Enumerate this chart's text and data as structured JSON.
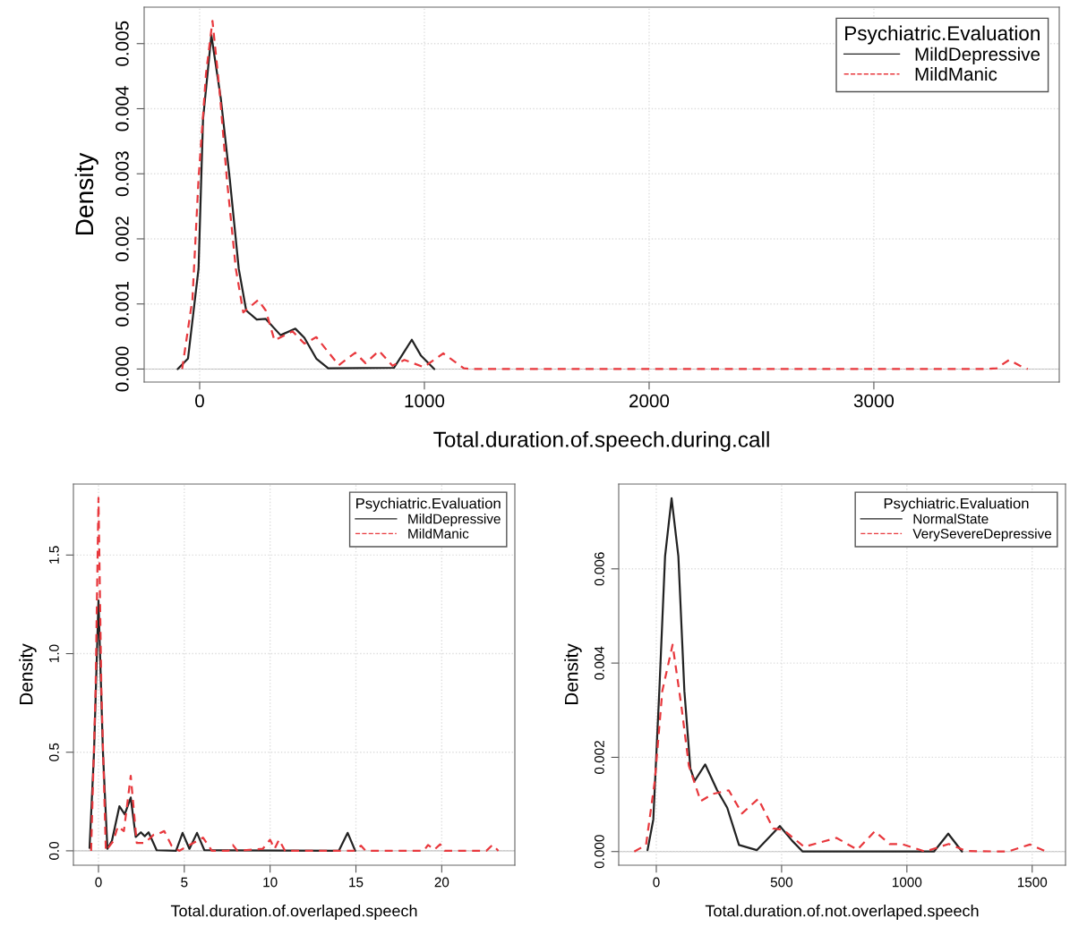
{
  "chart_data": [
    {
      "type": "line",
      "xlabel": "Total.duration.of.speech.during.call",
      "ylabel": "Density",
      "legend_title": "Psychiatric.Evaluation",
      "legend": "top right",
      "grid": true,
      "xlim": [
        -247,
        3825
      ],
      "ylim": [
        -0.0002,
        0.00556
      ],
      "xticks": [
        0,
        1000,
        2000,
        3000
      ],
      "yticks": [
        {
          "value": 0,
          "label": "0.000"
        },
        {
          "value": 0.001,
          "label": "0.001"
        },
        {
          "value": 0.002,
          "label": "0.002"
        },
        {
          "value": 0.003,
          "label": "0.003"
        },
        {
          "value": 0.004,
          "label": "0.004"
        },
        {
          "value": 0.005,
          "label": "0.005"
        }
      ],
      "series": [
        {
          "name": "MildDepressive",
          "color": "#222222",
          "line_style": "solid",
          "x": [
            -98,
            -52,
            -5,
            15,
            52,
            94,
            134,
            174,
            207,
            254,
            294,
            360,
            426,
            466,
            519,
            572,
            865,
            904,
            944,
            984,
            1044
          ],
          "values": [
            0,
            0.00016,
            0.00154,
            0.00384,
            0.00513,
            0.00416,
            0.00292,
            0.00154,
            0.0009,
            0.00076,
            0.00077,
            0.00052,
            0.00062,
            0.00048,
            0.00016,
            1e-05,
            2e-05,
            0.00023,
            0.00045,
            0.00021,
            0
          ]
        },
        {
          "name": "MildManic",
          "color": "#e8383d",
          "line_style": "dashed",
          "x": [
            -78,
            -32,
            -5,
            28,
            57,
            88,
            121,
            161,
            194,
            260,
            294,
            333,
            413,
            466,
            519,
            619,
            692,
            738,
            798,
            858,
            911,
            997,
            1084,
            1176,
            1210,
            3500,
            3546,
            3602,
            3650,
            3685
          ],
          "values": [
            0,
            0.00108,
            0.00292,
            0.00453,
            0.00535,
            0.0043,
            0.00292,
            0.00154,
            0.00087,
            0.00106,
            0.0009,
            0.00044,
            0.00058,
            0.00039,
            0.00049,
            6e-05,
            0.00025,
            9e-05,
            0.00028,
            5e-05,
            0.00014,
            3e-05,
            0.00024,
            1e-05,
            0,
            0,
            1e-05,
            0.00014,
            5e-05,
            0
          ]
        }
      ]
    },
    {
      "type": "line",
      "xlabel": "Total.duration.of.overlaped.speech",
      "ylabel": "Density",
      "legend_title": "Psychiatric.Evaluation",
      "legend": "top right",
      "grid": true,
      "xlim": [
        -1.46,
        24.26
      ],
      "ylim": [
        -0.073,
        1.86
      ],
      "xticks": [
        0,
        5,
        10,
        15,
        20
      ],
      "yticks": [
        {
          "value": 0,
          "label": "0.0"
        },
        {
          "value": 0.5,
          "label": "0.5"
        },
        {
          "value": 1,
          "label": "1.0"
        },
        {
          "value": 1.5,
          "label": "1.5"
        }
      ],
      "series": [
        {
          "name": "MildDepressive",
          "color": "#222222",
          "line_style": "solid",
          "x": [
            -0.52,
            -0.26,
            0,
            0.26,
            0.52,
            0.78,
            1.22,
            1.53,
            1.88,
            2.17,
            2.47,
            2.7,
            2.92,
            3.39,
            4.52,
            4.9,
            5.3,
            5.74,
            6.17,
            14.0,
            14.52,
            14.96
          ],
          "values": [
            0.015,
            0.5,
            1.27,
            0.5,
            0.01,
            0.05,
            0.226,
            0.185,
            0.27,
            0.07,
            0.094,
            0.074,
            0.094,
            0.003,
            0,
            0.091,
            0.01,
            0.091,
            0.003,
            0,
            0.091,
            0
          ]
        },
        {
          "name": "MildManic",
          "color": "#e8383d",
          "line_style": "dashed",
          "x": [
            -0.43,
            -0.17,
            0,
            0.17,
            0.43,
            0.87,
            1.13,
            1.48,
            1.88,
            2.23,
            2.7,
            3.22,
            3.48,
            3.83,
            4.26,
            4.7,
            6.09,
            6.61,
            7.57,
            7.83,
            8.09,
            9.57,
            10.0,
            10.26,
            10.52,
            10.87,
            14.87,
            15.3,
            15.57,
            18.96,
            19.2,
            19.57,
            19.91,
            20.17,
            22.6,
            22.96,
            23.3
          ],
          "values": [
            0,
            0.81,
            1.79,
            0.81,
            0,
            0.05,
            0.124,
            0.1,
            0.38,
            0.04,
            0.04,
            0.082,
            0.086,
            0.1,
            0.026,
            0,
            0.067,
            0,
            0,
            0.03,
            0,
            0.01,
            0.056,
            0.01,
            0.056,
            0,
            0,
            0.026,
            0,
            0,
            0.03,
            0.006,
            0.033,
            0,
            0,
            0.03,
            0
          ]
        }
      ]
    },
    {
      "type": "line",
      "xlabel": "Total.duration.of.not.overlaped.speech",
      "ylabel": "Density",
      "legend_title": "Psychiatric.Evaluation",
      "legend": "top right",
      "grid": true,
      "xlim": [
        -150,
        1633
      ],
      "ylim": [
        -0.00029,
        0.0078
      ],
      "xticks": [
        0,
        500,
        1000,
        1500
      ],
      "yticks": [
        {
          "value": 0,
          "label": "0.000"
        },
        {
          "value": 0.002,
          "label": "0.002"
        },
        {
          "value": 0.004,
          "label": "0.004"
        },
        {
          "value": 0.006,
          "label": "0.006"
        }
      ],
      "series": [
        {
          "name": "NormalState",
          "color": "#222222",
          "line_style": "solid",
          "x": [
            -35,
            -12,
            12,
            35,
            61,
            88,
            112,
            136,
            153,
            195,
            242,
            283,
            330,
            401,
            493,
            542,
            584,
            1108,
            1165,
            1220
          ],
          "values": [
            3e-05,
            0.00068,
            0.00341,
            0.00627,
            0.0075,
            0.00627,
            0.00341,
            0.00176,
            0.0015,
            0.00185,
            0.00131,
            0.00093,
            0.00014,
            3e-05,
            0.00054,
            0.00023,
            0,
            0,
            0.00038,
            0
          ]
        },
        {
          "name": "VerySevereDepressive",
          "color": "#e8383d",
          "line_style": "dashed",
          "x": [
            -88,
            -41,
            -6,
            24,
            65,
            100,
            130,
            177,
            224,
            289,
            342,
            407,
            466,
            507,
            590,
            719,
            802,
            872,
            931,
            979,
            1073,
            1167,
            1238,
            1403,
            1491,
            1556
          ],
          "values": [
            0,
            0.00014,
            0.0015,
            0.00341,
            0.00439,
            0.00309,
            0.00182,
            0.00107,
            0.00122,
            0.0013,
            0.00081,
            0.00112,
            0.00049,
            0.00046,
            0.0001,
            0.00029,
            4e-05,
            0.00043,
            0.00016,
            0.00016,
            0,
            0.00016,
            1e-05,
            0,
            0.00015,
            0
          ]
        }
      ]
    }
  ]
}
